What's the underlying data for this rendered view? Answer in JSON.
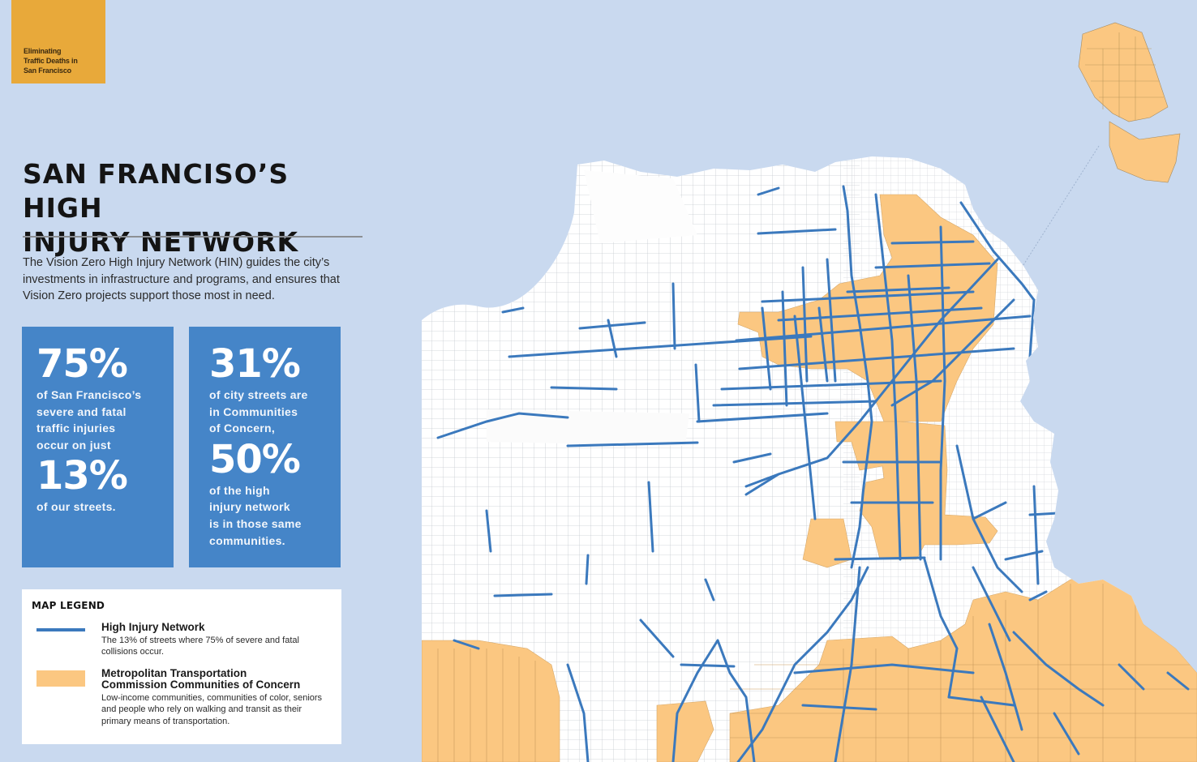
{
  "tag": {
    "lines": [
      "Eliminating",
      "Traffic Deaths in",
      "San Francisco"
    ],
    "color": "#e8a93a"
  },
  "title": {
    "line1": "SAN FRANCISO’S HIGH",
    "line2": "INJURY NETWORK"
  },
  "intro": "The Vision Zero High Injury Network (HIN) guides the city’s investments in infrastructure and programs, and ensures that Vision Zero projects support those most in need.",
  "stats": [
    {
      "big1": "75%",
      "text1": [
        "of San Francisco’s",
        "severe and fatal",
        "traffic injuries",
        "occur on just"
      ],
      "big2": "13%",
      "text2": [
        "of our streets."
      ]
    },
    {
      "big1": "31%",
      "text1": [
        "of city streets are",
        "in Communities",
        "of Concern,"
      ],
      "big2": "50%",
      "text2": [
        "of the high",
        "injury network",
        "is in those same",
        "communities."
      ]
    }
  ],
  "legend": {
    "title": "MAP LEGEND",
    "items": [
      {
        "name": "High Injury Network",
        "desc": "The 13% of streets where 75% of severe and fatal collisions occur.",
        "swatch_color": "#3b79bd"
      },
      {
        "name_line1": "Metropolitan Transportation",
        "name_line2": "Commission Communities of Concern",
        "desc": "Low-income communities, communities of color, seniors and people who rely on walking and transit as their primary means of transportation.",
        "swatch_color": "#fbc781"
      }
    ]
  },
  "map": {
    "colors": {
      "water": "#c9d9ef",
      "land": "#ffffff",
      "community_of_concern": "#fbc781",
      "high_injury_network": "#3b79bd",
      "street_grid": "#c7cbd1"
    }
  }
}
